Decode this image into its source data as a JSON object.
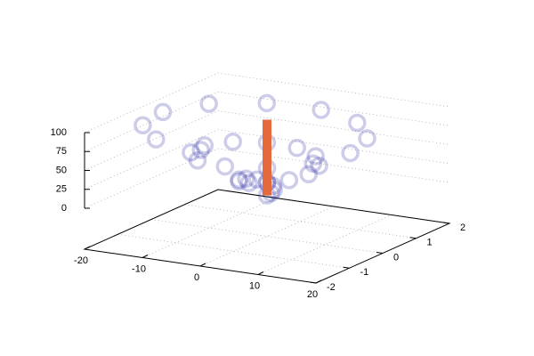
{
  "chart_data": {
    "type": "scatter3d",
    "series": [
      {
        "color": "#1a1aa0",
        "x": [
          0,
          0.52,
          0.6,
          0,
          -1.2,
          -2.6,
          -3.6,
          -3.64,
          -2.4,
          0,
          3,
          5.72,
          7.2,
          6.75,
          4.2,
          0,
          -4.8,
          -8.83,
          -10.8,
          -9.87,
          -6,
          0,
          6.6,
          11.95,
          14.4,
          12.99,
          7.8,
          0,
          -8.4,
          -15.07,
          -18,
          -16.11,
          -9.6,
          0
        ],
        "y": [
          0,
          0.03,
          0.1,
          0.18,
          0.21,
          0.15,
          0,
          -0.21,
          -0.42,
          -0.54,
          -0.52,
          -0.33,
          0,
          0.39,
          0.73,
          0.9,
          0.83,
          0.51,
          0,
          -0.57,
          -1.04,
          -1.26,
          -1.14,
          -0.69,
          0,
          0.75,
          1.35,
          1.62,
          1.45,
          0.87,
          0,
          -0.93,
          -1.66,
          -1.98
        ],
        "z": [
          0,
          3,
          6,
          9,
          12,
          15,
          18,
          21,
          24,
          27,
          30,
          33,
          36,
          39,
          42,
          45,
          48,
          51,
          54,
          57,
          60,
          63,
          66,
          69,
          72,
          75,
          78,
          81,
          84,
          87,
          90,
          93,
          96,
          99
        ]
      }
    ],
    "bar": {
      "x": 0,
      "y": 0,
      "value": 100,
      "color": "#e46a3e"
    },
    "xlim": [
      -20,
      20
    ],
    "ylim": [
      -2,
      2
    ],
    "zlim": [
      0,
      100
    ],
    "xticks": [
      -20,
      -10,
      0,
      10,
      20
    ],
    "yticks": [
      -2,
      -1,
      0,
      1,
      2
    ],
    "zticks": [
      0,
      25,
      50,
      75,
      100
    ],
    "grid": true
  }
}
